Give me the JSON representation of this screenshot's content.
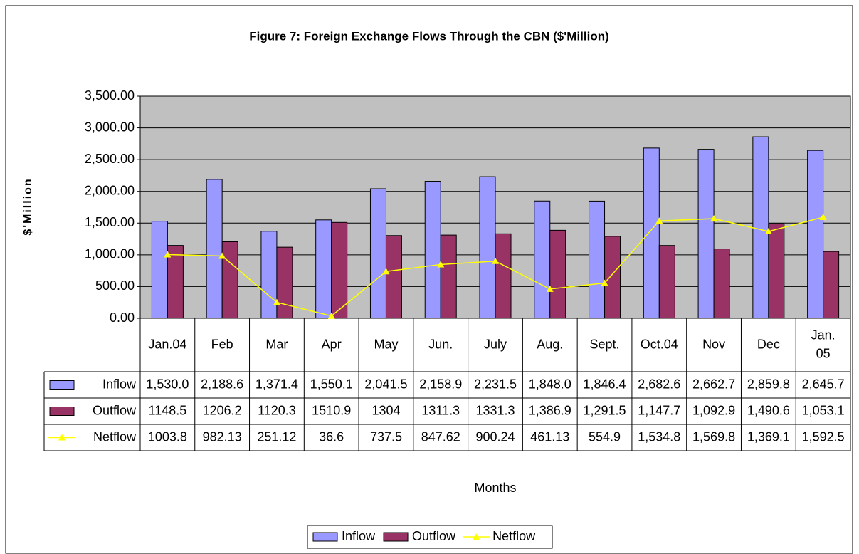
{
  "chart_data": {
    "type": "bar",
    "title": "Figure 7: Foreign Exchange Flows Through the CBN ($'Million)",
    "y_label": "$'Million",
    "x_label": "Months",
    "categories": [
      "Jan.04",
      "Feb",
      "Mar",
      "Apr",
      "May",
      "Jun.",
      "July",
      "Aug.",
      "Sept.",
      "Oct.04",
      "Nov",
      "Dec",
      "Jan. 05"
    ],
    "series": [
      {
        "name": "Inflow",
        "type": "bar",
        "color": "#9999ff",
        "values": [
          1530.0,
          2188.6,
          1371.4,
          1550.1,
          2041.5,
          2158.9,
          2231.5,
          1848.0,
          1846.4,
          2682.6,
          2662.7,
          2859.8,
          2645.7
        ],
        "value_labels": [
          "1,530.0",
          "2,188.6",
          "1,371.4",
          "1,550.1",
          "2,041.5",
          "2,158.9",
          "2,231.5",
          "1,848.0",
          "1,846.4",
          "2,682.6",
          "2,662.7",
          "2,859.8",
          "2,645.7"
        ]
      },
      {
        "name": "Outflow",
        "type": "bar",
        "color": "#993366",
        "values": [
          1148.5,
          1206.2,
          1120.3,
          1510.9,
          1304,
          1311.3,
          1331.3,
          1386.9,
          1291.5,
          1147.7,
          1092.9,
          1490.6,
          1053.1
        ],
        "value_labels": [
          "1148.5",
          "1206.2",
          "1120.3",
          "1510.9",
          "1304",
          "1311.3",
          "1331.3",
          "1,386.9",
          "1,291.5",
          "1,147.7",
          "1,092.9",
          "1,490.6",
          "1,053.1"
        ]
      },
      {
        "name": "Netflow",
        "type": "line",
        "color": "#ffff00",
        "values": [
          1003.8,
          982.13,
          251.12,
          36.6,
          737.5,
          847.62,
          900.24,
          461.13,
          554.9,
          1534.8,
          1569.8,
          1369.1,
          1592.5
        ],
        "value_labels": [
          "1003.8",
          "982.13",
          "251.12",
          "36.6",
          "737.5",
          "847.62",
          "900.24",
          "461.13",
          "554.9",
          "1,534.8",
          "1,569.8",
          "1,369.1",
          "1,592.5"
        ]
      }
    ],
    "ylim": [
      0,
      3500
    ],
    "yticks": [
      {
        "value": 0,
        "label": "0.00"
      },
      {
        "value": 500,
        "label": "500.00"
      },
      {
        "value": 1000,
        "label": "1,000.00"
      },
      {
        "value": 1500,
        "label": "1,500.00"
      },
      {
        "value": 2000,
        "label": "2,000.00"
      },
      {
        "value": 2500,
        "label": "2,500.00"
      },
      {
        "value": 3000,
        "label": "3,000.00"
      },
      {
        "value": 3500,
        "label": "3,500.00"
      }
    ],
    "grid": true,
    "plot_background": "#c0c0c0",
    "legend": "bottom"
  }
}
